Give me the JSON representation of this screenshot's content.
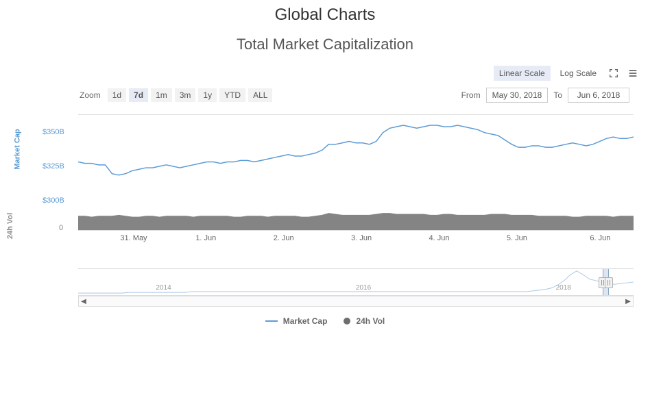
{
  "page_title": "Global Charts",
  "chart": {
    "title": "Total Market Capitalization",
    "scale_options": [
      "Linear Scale",
      "Log Scale"
    ],
    "scale_active_index": 0,
    "zoom_label": "Zoom",
    "zoom_options": [
      "1d",
      "7d",
      "1m",
      "3m",
      "1y",
      "YTD",
      "ALL"
    ],
    "zoom_active_index": 1,
    "date_from_label": "From",
    "date_from": "May 30, 2018",
    "date_to_label": "To",
    "date_to": "Jun 6, 2018",
    "yaxis_primary": {
      "label": "Market Cap",
      "ticks": [
        "$350B",
        "$325B",
        "$300B"
      ],
      "tick_values": [
        350,
        325,
        300
      ],
      "ylim": [
        300,
        360
      ],
      "color": "#5b9bd5",
      "fontsize": 11
    },
    "yaxis_secondary": {
      "label": "24h Vol",
      "ticks": [
        "0"
      ],
      "color": "#8a8a8a",
      "fontsize": 11
    },
    "xaxis": {
      "ticks": [
        "31. May",
        "1. Jun",
        "2. Jun",
        "3. Jun",
        "4. Jun",
        "5. Jun",
        "6. Jun"
      ],
      "tick_positions_pct": [
        10,
        23,
        37,
        51,
        65,
        79,
        94
      ],
      "color": "#666666",
      "fontsize": 11
    },
    "series": {
      "market_cap": {
        "type": "line",
        "color": "#5b9bd5",
        "line_width": 1.5,
        "values_B": [
          328,
          327,
          327,
          326,
          326,
          320,
          319,
          320,
          322,
          323,
          324,
          324,
          325,
          326,
          325,
          324,
          325,
          326,
          327,
          328,
          328,
          327,
          328,
          328,
          329,
          329,
          328,
          329,
          330,
          331,
          332,
          333,
          332,
          332,
          333,
          334,
          336,
          340,
          340,
          341,
          342,
          341,
          341,
          340,
          342,
          348,
          351,
          352,
          353,
          352,
          351,
          352,
          353,
          353,
          352,
          352,
          353,
          352,
          351,
          350,
          348,
          347,
          346,
          343,
          340,
          338,
          338,
          339,
          339,
          338,
          338,
          339,
          340,
          341,
          340,
          339,
          340,
          342,
          344,
          345,
          344,
          344,
          345
        ]
      },
      "volume": {
        "type": "area",
        "color": "#6e6e6e",
        "opacity": 0.85,
        "max_B": 25,
        "values_B": [
          15,
          15,
          14,
          15,
          15,
          15,
          16,
          15,
          14,
          14,
          15,
          15,
          14,
          15,
          15,
          15,
          15,
          14,
          15,
          15,
          15,
          15,
          15,
          14,
          14,
          15,
          15,
          15,
          14,
          15,
          15,
          15,
          15,
          14,
          14,
          15,
          16,
          18,
          17,
          16,
          16,
          16,
          16,
          16,
          17,
          18,
          18,
          17,
          17,
          17,
          17,
          17,
          16,
          16,
          17,
          17,
          16,
          16,
          16,
          16,
          16,
          17,
          17,
          17,
          16,
          16,
          16,
          16,
          15,
          15,
          15,
          15,
          15,
          14,
          14,
          15,
          15,
          15,
          15,
          14,
          15,
          15,
          15
        ]
      }
    },
    "navigator": {
      "year_labels": [
        "2014",
        "2016",
        "2018"
      ],
      "year_positions_pct": [
        14,
        50,
        86
      ],
      "range_start_pct": 94.5,
      "range_end_pct": 95.5,
      "line_color": "#a8c7e6",
      "values": [
        5,
        5,
        5,
        5,
        5,
        5,
        5,
        5,
        6,
        6,
        6,
        6,
        6,
        6,
        6,
        6,
        6,
        6,
        7,
        7,
        7,
        7,
        7,
        7,
        7,
        7,
        7,
        7,
        7,
        7,
        7,
        7,
        7,
        7,
        7,
        7,
        7,
        7,
        7,
        7,
        7,
        7,
        7,
        7,
        7,
        7,
        7,
        7,
        7,
        7,
        7,
        7,
        7,
        7,
        7,
        7,
        7,
        7,
        7,
        7,
        7,
        7,
        7,
        7,
        7,
        7,
        7,
        7,
        7,
        7,
        7,
        7,
        8,
        9,
        10,
        12,
        16,
        22,
        30,
        35,
        30,
        24,
        22,
        20,
        18,
        17,
        18,
        19,
        20
      ]
    },
    "grid_color": "#dcdcdc",
    "background_color": "#ffffff"
  },
  "legend": {
    "items": [
      {
        "label": "Market Cap",
        "type": "line",
        "color": "#5b9bd5"
      },
      {
        "label": "24h Vol",
        "type": "dot",
        "color": "#6e6e6e"
      }
    ]
  }
}
